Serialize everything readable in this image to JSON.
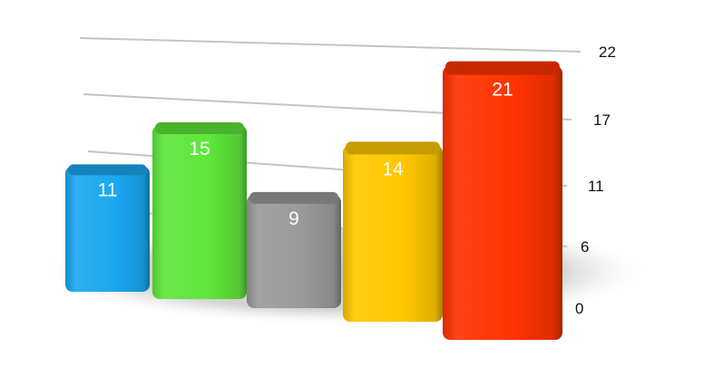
{
  "chart_data": {
    "type": "bar",
    "three_d": true,
    "categories": [
      "",
      "",
      "",
      "",
      ""
    ],
    "values": [
      11,
      15,
      9,
      14,
      21
    ],
    "data_labels": [
      "11",
      "15",
      "9",
      "14",
      "21"
    ],
    "colors": [
      "#1aa7f0",
      "#5ee63a",
      "#9a9a9a",
      "#ffc800",
      "#ff3300"
    ],
    "yticks": [
      0,
      6,
      11,
      17,
      22
    ],
    "ytick_labels": [
      "0",
      "6",
      "11",
      "17",
      "22"
    ],
    "ylim": [
      0,
      22
    ],
    "y_axis_side": "right",
    "grid": true,
    "legend": "none",
    "title": "",
    "xlabel": "",
    "ylabel": ""
  }
}
